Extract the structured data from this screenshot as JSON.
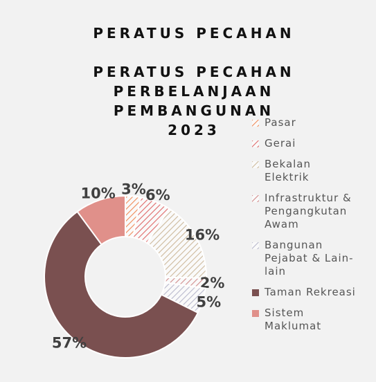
{
  "chart_data": {
    "type": "donut",
    "title": "PERATUS PECAHAN",
    "subtitle": [
      "PERATUS PECAHAN",
      "PERBELANJAAN",
      "PEMBANGUNAN",
      "2023"
    ],
    "categories": [
      "Pasar",
      "Gerai",
      "Bekalan Elektrik",
      "Infrastruktur & Pengangkutan Awam",
      "Bangunan Pejabat & Lain-lain",
      "Taman Rekreasi",
      "Sistem Maklumat"
    ],
    "values": [
      3,
      6,
      16,
      2,
      5,
      57,
      10
    ],
    "value_labels": [
      "3%",
      "6%",
      "16%",
      "2%",
      "5%",
      "57%",
      "10%"
    ],
    "colors": [
      "#f08c5a",
      "#e06a6a",
      "#cdb99c",
      "#d08a8a",
      "#b8b8cc",
      "#7a5050",
      "#e0908a"
    ],
    "hatched": [
      true,
      true,
      true,
      true,
      true,
      false,
      false
    ],
    "legend": "right"
  }
}
